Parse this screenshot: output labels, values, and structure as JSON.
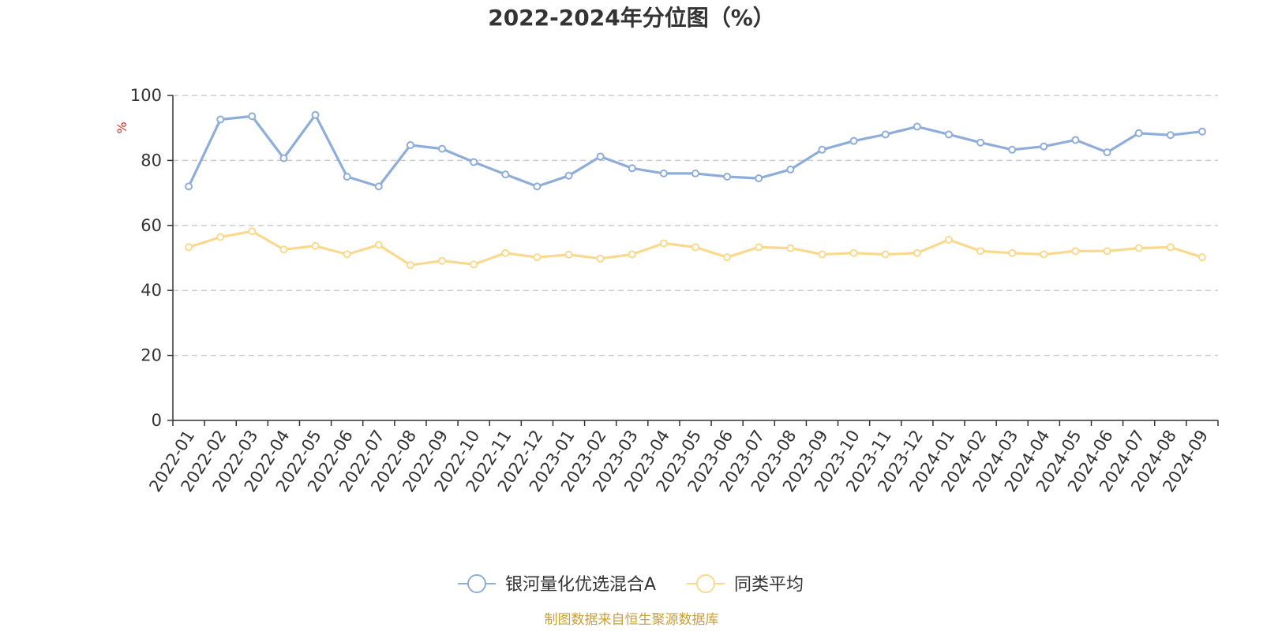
{
  "chart_data": {
    "type": "line",
    "title": "2022-2024年分位图（%）",
    "ylabel": "%",
    "xlabel": "",
    "ylim": [
      0,
      100
    ],
    "y_ticks": [
      "0",
      "20",
      "40",
      "60",
      "80",
      "100"
    ],
    "grid": true,
    "legend_position": "bottom-center",
    "categories": [
      "2022-01",
      "2022-02",
      "2022-03",
      "2022-04",
      "2022-05",
      "2022-06",
      "2022-07",
      "2022-08",
      "2022-09",
      "2022-10",
      "2022-11",
      "2022-12",
      "2023-01",
      "2023-02",
      "2023-03",
      "2023-04",
      "2023-05",
      "2023-06",
      "2023-07",
      "2023-08",
      "2023-09",
      "2023-10",
      "2023-11",
      "2023-12",
      "2024-01",
      "2024-02",
      "2024-03",
      "2024-04",
      "2024-05",
      "2024-06",
      "2024-07",
      "2024-08",
      "2024-09"
    ],
    "series": [
      {
        "name": "银河量化优选混合A",
        "color": "#8eadd9",
        "values": [
          72.0,
          92.6,
          93.6,
          80.7,
          94.0,
          75.0,
          72.0,
          84.7,
          83.6,
          79.5,
          75.7,
          72.0,
          75.3,
          81.2,
          77.6,
          76.0,
          76.0,
          75.0,
          74.5,
          77.2,
          83.3,
          86.0,
          88.0,
          90.4,
          88.0,
          85.5,
          83.3,
          84.3,
          86.3,
          82.5,
          88.4,
          87.8,
          88.9
        ]
      },
      {
        "name": "同类平均",
        "color": "#f9d98e",
        "values": [
          53.3,
          56.4,
          58.2,
          52.6,
          53.7,
          51.1,
          54.0,
          47.8,
          49.1,
          48.0,
          51.5,
          50.2,
          51.0,
          49.8,
          51.1,
          54.5,
          53.3,
          50.2,
          53.3,
          53.0,
          51.1,
          51.5,
          51.1,
          51.5,
          55.6,
          52.1,
          51.5,
          51.1,
          52.1,
          52.1,
          53.0,
          53.3,
          50.2
        ]
      }
    ]
  },
  "footer": {
    "source": "制图数据来自恒生聚源数据库"
  }
}
